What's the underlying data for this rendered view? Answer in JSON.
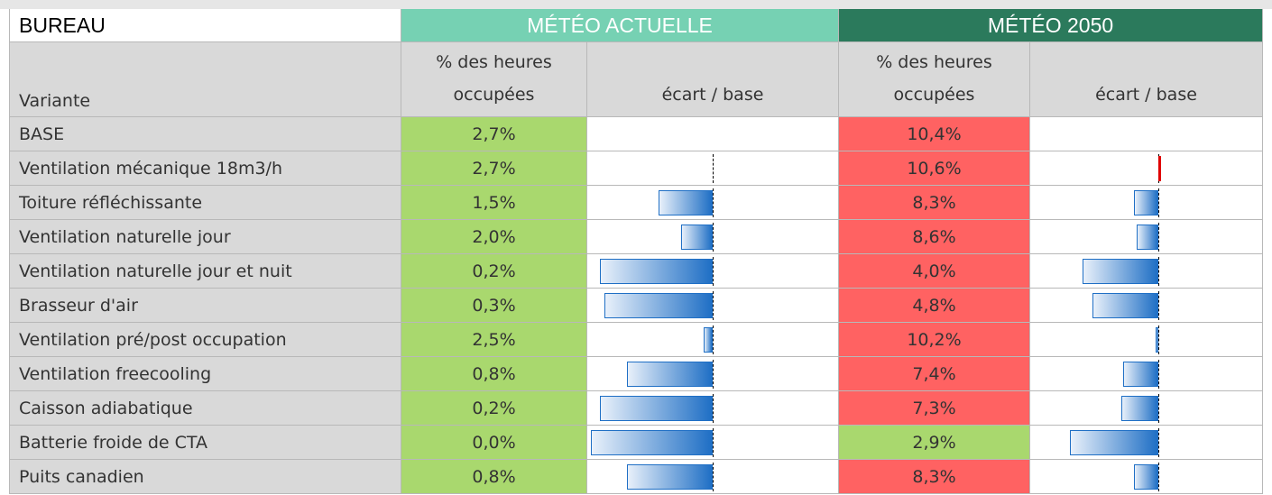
{
  "header": {
    "title": "BUREAU",
    "groups": [
      "MÉTÉO  ACTUELLE",
      "MÉTÉO 2050"
    ],
    "group_colors": [
      "#76d1b3",
      "#2b7a5c"
    ],
    "row_label": "Variante",
    "columns": [
      [
        "% des heures",
        "occupées"
      ],
      "écart / base",
      [
        "% des heures",
        "occupées"
      ],
      "écart / base"
    ]
  },
  "bar_colors": {
    "negative": "#1f6fc5",
    "positive": "#e00000"
  },
  "rows": [
    {
      "variante": "BASE",
      "actuelle": "2,7%",
      "actuelle_color": "#a9d86e",
      "ecart_actuelle": 0,
      "m2050": "10,4%",
      "m2050_color": "#ff6262",
      "ecart_2050": 0
    },
    {
      "variante": "Ventilation mécanique 18m3/h",
      "actuelle": "2,7%",
      "actuelle_color": "#a9d86e",
      "ecart_actuelle": 0,
      "m2050": "10,6%",
      "m2050_color": "#ff6262",
      "ecart_2050": 0.2
    },
    {
      "variante": "Toiture réfléchissante",
      "actuelle": "1,5%",
      "actuelle_color": "#a9d86e",
      "ecart_actuelle": -1.2,
      "m2050": "8,3%",
      "m2050_color": "#ff6262",
      "ecart_2050": -2.1
    },
    {
      "variante": "Ventilation naturelle jour",
      "actuelle": "2,0%",
      "actuelle_color": "#a9d86e",
      "ecart_actuelle": -0.7,
      "m2050": "8,6%",
      "m2050_color": "#ff6262",
      "ecart_2050": -1.8
    },
    {
      "variante": "Ventilation naturelle jour et nuit",
      "actuelle": "0,2%",
      "actuelle_color": "#a9d86e",
      "ecart_actuelle": -2.5,
      "m2050": "4,0%",
      "m2050_color": "#ff6262",
      "ecart_2050": -6.4
    },
    {
      "variante": "Brasseur d'air",
      "actuelle": "0,3%",
      "actuelle_color": "#a9d86e",
      "ecart_actuelle": -2.4,
      "m2050": "4,8%",
      "m2050_color": "#ff6262",
      "ecart_2050": -5.6
    },
    {
      "variante": "Ventilation pré/post occupation",
      "actuelle": "2,5%",
      "actuelle_color": "#a9d86e",
      "ecart_actuelle": -0.2,
      "m2050": "10,2%",
      "m2050_color": "#ff6262",
      "ecart_2050": -0.2
    },
    {
      "variante": "Ventilation freecooling",
      "actuelle": "0,8%",
      "actuelle_color": "#a9d86e",
      "ecart_actuelle": -1.9,
      "m2050": "7,4%",
      "m2050_color": "#ff6262",
      "ecart_2050": -3.0
    },
    {
      "variante": "Caisson adiabatique",
      "actuelle": "0,2%",
      "actuelle_color": "#a9d86e",
      "ecart_actuelle": -2.5,
      "m2050": "7,3%",
      "m2050_color": "#ff6262",
      "ecart_2050": -3.1
    },
    {
      "variante": "Batterie froide de CTA",
      "actuelle": "0,0%",
      "actuelle_color": "#a9d86e",
      "ecart_actuelle": -2.7,
      "m2050": "2,9%",
      "m2050_color": "#a9d86e",
      "ecart_2050": -7.5
    },
    {
      "variante": "Puits canadien",
      "actuelle": "0,8%",
      "actuelle_color": "#a9d86e",
      "ecart_actuelle": -1.9,
      "m2050": "8,3%",
      "m2050_color": "#ff6262",
      "ecart_2050": -2.1
    }
  ]
}
